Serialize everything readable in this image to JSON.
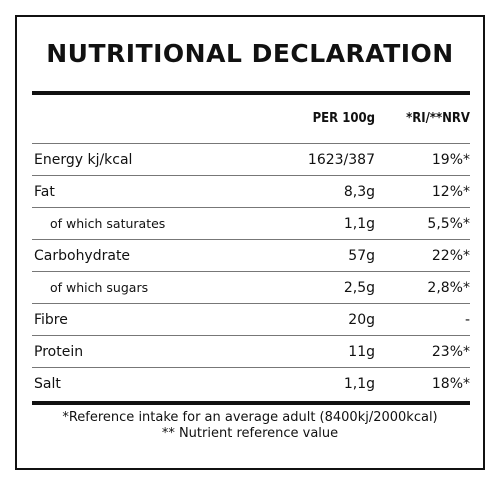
{
  "title": "NUTRITIONAL DECLARATION",
  "header": {
    "per_100g": "PER 100g",
    "ri_nrv": "*RI/**NRV"
  },
  "rows": [
    {
      "name": "Energy kj/kcal",
      "per_100g": "1623/387",
      "ri": "19%*",
      "sub": false
    },
    {
      "name": "Fat",
      "per_100g": "8,3g",
      "ri": "12%*",
      "sub": false
    },
    {
      "name": "of which saturates",
      "per_100g": "1,1g",
      "ri": "5,5%*",
      "sub": true
    },
    {
      "name": "Carbohydrate",
      "per_100g": "57g",
      "ri": "22%*",
      "sub": false
    },
    {
      "name": "of which sugars",
      "per_100g": "2,5g",
      "ri": "2,8%*",
      "sub": true
    },
    {
      "name": "Fibre",
      "per_100g": "20g",
      "ri": "-",
      "sub": false
    },
    {
      "name": "Protein",
      "per_100g": "11g",
      "ri": "23%*",
      "sub": false
    },
    {
      "name": "Salt",
      "per_100g": "1,1g",
      "ri": "18%*",
      "sub": false
    }
  ],
  "footnotes": {
    "ri": "*Reference intake for an average adult (8400kj/2000kcal)",
    "nrv": "** Nutrient reference value"
  }
}
